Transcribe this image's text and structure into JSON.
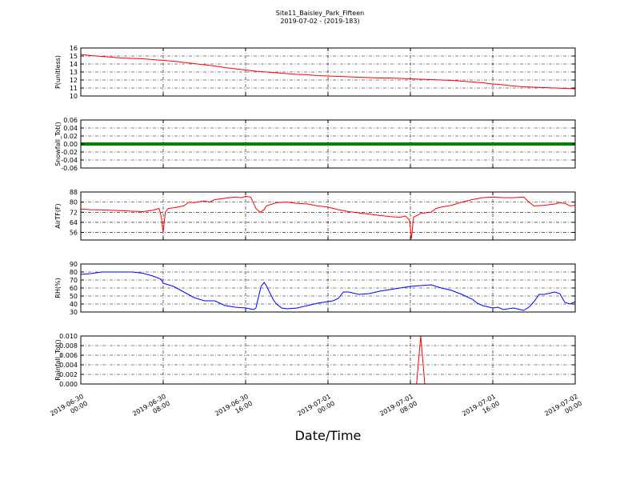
{
  "figure": {
    "title_line1": "Site11_Baisley_Park_Fifteen",
    "title_line2": "2019-07-02 - (2019-183)",
    "xlabel": "Date/Time",
    "xticks": [
      {
        "x": 0,
        "line1": "2019-06-30",
        "line2": "00:00"
      },
      {
        "x": 8,
        "line1": "2019-06-30",
        "line2": "08:00"
      },
      {
        "x": 16,
        "line1": "2019-06-30",
        "line2": "16:00"
      },
      {
        "x": 24,
        "line1": "2019-07-01",
        "line2": "00:00"
      },
      {
        "x": 32,
        "line1": "2019-07-01",
        "line2": "08:00"
      },
      {
        "x": 40,
        "line1": "2019-07-01",
        "line2": "16:00"
      },
      {
        "x": 48,
        "line1": "2019-07-02",
        "line2": "00:00"
      }
    ]
  },
  "chart_data": [
    {
      "type": "line",
      "ylabel": "P(unitless)",
      "ylim": [
        10,
        16
      ],
      "yticks": [
        "10",
        "11",
        "12",
        "13",
        "14",
        "15",
        "16"
      ],
      "grid": true,
      "series": [
        {
          "color": "#ff0000",
          "points": [
            [
              0,
              15.2
            ],
            [
              1,
              15.05
            ],
            [
              2,
              14.95
            ],
            [
              3,
              14.85
            ],
            [
              4,
              14.75
            ],
            [
              5,
              14.7
            ],
            [
              6,
              14.65
            ],
            [
              7,
              14.55
            ],
            [
              8,
              14.45
            ],
            [
              9,
              14.35
            ],
            [
              10,
              14.2
            ],
            [
              11,
              14.05
            ],
            [
              12,
              13.9
            ],
            [
              13,
              13.75
            ],
            [
              14,
              13.55
            ],
            [
              15,
              13.4
            ],
            [
              16,
              13.25
            ],
            [
              17,
              13.1
            ],
            [
              18,
              13.0
            ],
            [
              19,
              12.9
            ],
            [
              20,
              12.8
            ],
            [
              21,
              12.7
            ],
            [
              22,
              12.65
            ],
            [
              23,
              12.55
            ],
            [
              24,
              12.5
            ],
            [
              25,
              12.45
            ],
            [
              26,
              12.4
            ],
            [
              27,
              12.35
            ],
            [
              28,
              12.3
            ],
            [
              29,
              12.25
            ],
            [
              30,
              12.25
            ],
            [
              31,
              12.2
            ],
            [
              32,
              12.15
            ],
            [
              33,
              12.1
            ],
            [
              34,
              12.05
            ],
            [
              35,
              12.0
            ],
            [
              36,
              11.95
            ],
            [
              37,
              11.85
            ],
            [
              38,
              11.75
            ],
            [
              39,
              11.65
            ],
            [
              40,
              11.5
            ],
            [
              41,
              11.4
            ],
            [
              42,
              11.25
            ],
            [
              43,
              11.15
            ],
            [
              44,
              11.1
            ],
            [
              45,
              11.05
            ],
            [
              46,
              11.0
            ],
            [
              47,
              10.95
            ],
            [
              48,
              10.9
            ]
          ]
        }
      ]
    },
    {
      "type": "scatter",
      "ylabel": "Snowfall_Tot()",
      "ylim": [
        -0.06,
        0.06
      ],
      "yticks": [
        "-0.06",
        "-0.04",
        "-0.02",
        "0.00",
        "0.02",
        "0.04",
        "0.06"
      ],
      "grid": true,
      "series": [
        {
          "color": "#008000",
          "constant_value": 0.0,
          "x_range": [
            0,
            48
          ],
          "points": []
        }
      ]
    },
    {
      "type": "line",
      "ylabel": "AirTF(F)",
      "ylim": [
        50,
        88
      ],
      "yticks": [
        "56",
        "64",
        "72",
        "80",
        "88"
      ],
      "ytick_values": [
        56,
        64,
        72,
        80,
        88
      ],
      "grid": true,
      "series": [
        {
          "color": "#ff0000",
          "points": [
            [
              0,
              74.5
            ],
            [
              1,
              74
            ],
            [
              2,
              73.8
            ],
            [
              3,
              73.5
            ],
            [
              4,
              73.2
            ],
            [
              5,
              72.8
            ],
            [
              6,
              72.5
            ],
            [
              7,
              73.5
            ],
            [
              7.6,
              75
            ],
            [
              7.8,
              69
            ],
            [
              8,
              56
            ],
            [
              8.2,
              72
            ],
            [
              8.5,
              75
            ],
            [
              9,
              75.5
            ],
            [
              10,
              77
            ],
            [
              10.5,
              80
            ],
            [
              11,
              79.5
            ],
            [
              12,
              81
            ],
            [
              12.5,
              80
            ],
            [
              13,
              82
            ],
            [
              14,
              83
            ],
            [
              15,
              84
            ],
            [
              15.6,
              83.5
            ],
            [
              16,
              84.5
            ],
            [
              16.5,
              84
            ],
            [
              17,
              75
            ],
            [
              17.4,
              72
            ],
            [
              17.8,
              74
            ],
            [
              18,
              77
            ],
            [
              19,
              79.5
            ],
            [
              20,
              80
            ],
            [
              21,
              79
            ],
            [
              22,
              78.5
            ],
            [
              23,
              77
            ],
            [
              24,
              76
            ],
            [
              25,
              74
            ],
            [
              26,
              72.5
            ],
            [
              27,
              71.5
            ],
            [
              28,
              70.5
            ],
            [
              29,
              69.5
            ],
            [
              30,
              68.5
            ],
            [
              31,
              68
            ],
            [
              31.5,
              69
            ],
            [
              31.9,
              66
            ],
            [
              32.1,
              51
            ],
            [
              32.3,
              68
            ],
            [
              33,
              71
            ],
            [
              34,
              72
            ],
            [
              34.5,
              75
            ],
            [
              35,
              76
            ],
            [
              36,
              77.5
            ],
            [
              37,
              80
            ],
            [
              38,
              82
            ],
            [
              39,
              83.5
            ],
            [
              40,
              84
            ],
            [
              41,
              83.5
            ],
            [
              42,
              83.5
            ],
            [
              43,
              84
            ],
            [
              43.5,
              80
            ],
            [
              44,
              77
            ],
            [
              45,
              77.5
            ],
            [
              46,
              78.5
            ],
            [
              46.5,
              79.5
            ],
            [
              47,
              79
            ],
            [
              47.5,
              77
            ],
            [
              48,
              77.5
            ]
          ]
        }
      ]
    },
    {
      "type": "line",
      "ylabel": "RH(%)",
      "ylim": [
        30,
        90
      ],
      "yticks": [
        "30",
        "40",
        "50",
        "60",
        "70",
        "80",
        "90"
      ],
      "grid": true,
      "series": [
        {
          "color": "#0000ff",
          "points": [
            [
              0,
              77
            ],
            [
              1,
              78
            ],
            [
              2,
              80
            ],
            [
              3,
              80
            ],
            [
              4,
              80
            ],
            [
              5,
              80
            ],
            [
              6,
              78.5
            ],
            [
              7,
              75
            ],
            [
              7.8,
              71
            ],
            [
              8,
              66
            ],
            [
              9,
              62
            ],
            [
              10,
              55
            ],
            [
              11,
              48
            ],
            [
              12,
              44
            ],
            [
              13,
              44
            ],
            [
              14,
              38
            ],
            [
              15,
              36
            ],
            [
              16,
              35
            ],
            [
              16.8,
              33
            ],
            [
              17,
              35
            ],
            [
              17.5,
              62
            ],
            [
              17.8,
              67
            ],
            [
              18,
              63
            ],
            [
              18.7,
              45
            ],
            [
              19,
              40
            ],
            [
              19.5,
              35
            ],
            [
              20,
              34
            ],
            [
              21,
              35
            ],
            [
              22,
              38
            ],
            [
              23,
              41
            ],
            [
              24,
              43
            ],
            [
              24.5,
              44
            ],
            [
              25,
              47
            ],
            [
              25.5,
              55
            ],
            [
              26,
              55
            ],
            [
              27,
              52
            ],
            [
              28,
              53
            ],
            [
              29,
              56
            ],
            [
              30,
              58
            ],
            [
              31,
              60
            ],
            [
              32,
              62
            ],
            [
              33,
              63
            ],
            [
              34,
              64
            ],
            [
              35,
              60
            ],
            [
              36,
              57
            ],
            [
              37,
              52
            ],
            [
              38,
              46
            ],
            [
              38.5,
              41
            ],
            [
              39,
              38
            ],
            [
              40,
              35
            ],
            [
              40.5,
              36
            ],
            [
              41,
              33
            ],
            [
              42,
              35
            ],
            [
              43,
              32
            ],
            [
              43.5,
              36
            ],
            [
              44,
              43
            ],
            [
              44.5,
              52
            ],
            [
              45,
              52
            ],
            [
              46,
              55
            ],
            [
              46.5,
              53
            ],
            [
              47,
              42
            ],
            [
              47.5,
              40
            ],
            [
              48,
              43
            ]
          ]
        }
      ]
    },
    {
      "type": "line",
      "ylabel": "Rainfall_Tot()",
      "ylim": [
        0,
        0.01
      ],
      "yticks": [
        "0.000",
        "0.002",
        "0.004",
        "0.006",
        "0.008",
        "0.010"
      ],
      "grid": true,
      "series": [
        {
          "color": "#ff0000",
          "points": [
            [
              0,
              0
            ],
            [
              32.6,
              0
            ],
            [
              33,
              0.01
            ],
            [
              33.4,
              0
            ],
            [
              48,
              0
            ]
          ]
        }
      ]
    }
  ]
}
